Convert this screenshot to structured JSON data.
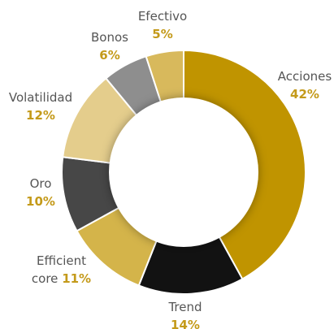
{
  "chart_data": {
    "type": "donut",
    "categories": [
      "Acciones",
      "Trend",
      "Efficient core",
      "Oro",
      "Volatilidad",
      "Bonos",
      "Efectivo"
    ],
    "values": [
      42,
      14,
      11,
      10,
      12,
      6,
      5
    ],
    "value_labels": [
      "42%",
      "14%",
      "11%",
      "10%",
      "12%",
      "6%",
      "5%"
    ],
    "colors": [
      "#c09400",
      "#121212",
      "#d4b44a",
      "#474747",
      "#e4cd8c",
      "#8e8e8e",
      "#d8b95c"
    ]
  }
}
